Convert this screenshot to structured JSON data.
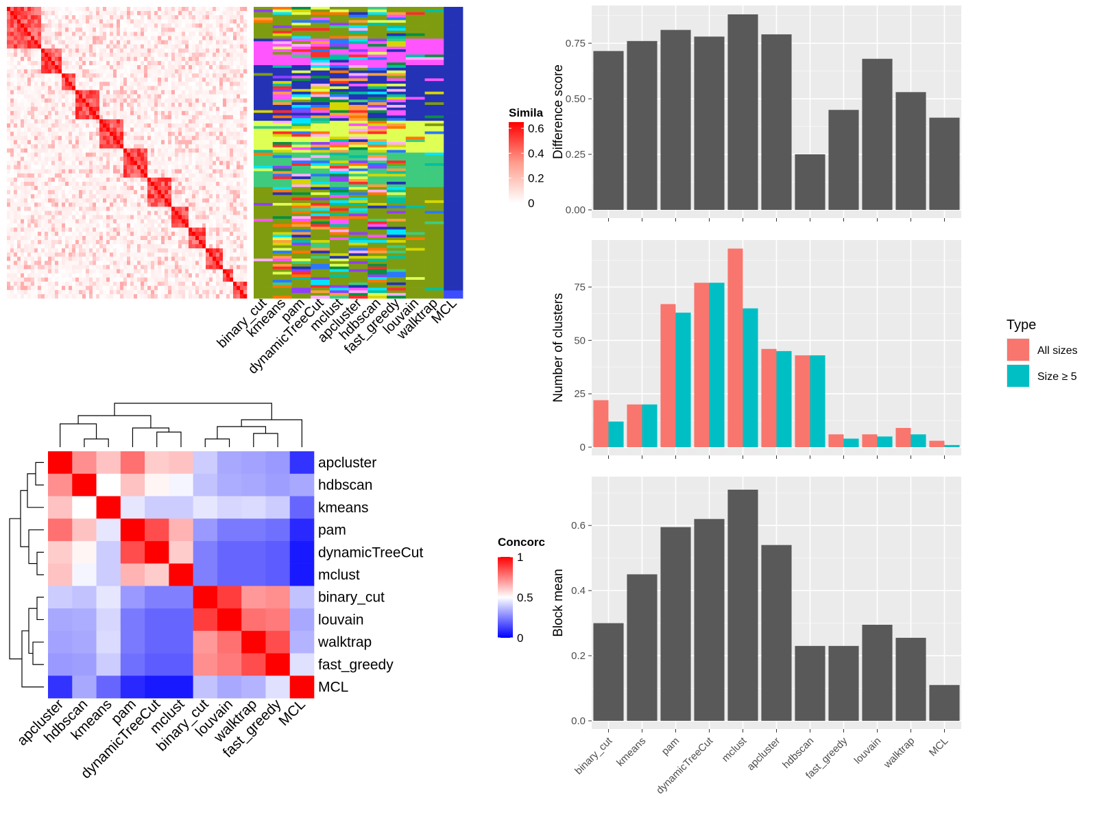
{
  "methods_order": [
    "binary_cut",
    "kmeans",
    "pam",
    "dynamicTreeCut",
    "mclust",
    "apcluster",
    "hdbscan",
    "fast_greedy",
    "louvain",
    "walktrap",
    "MCL"
  ],
  "similarity_panel": {
    "legend_title": "Simila",
    "legend_ticks": [
      "0",
      "0.2",
      "0.4",
      "0.6"
    ],
    "column_labels": [
      "binary_cut",
      "kmeans",
      "pam",
      "dynamicTreeCut",
      "mclust",
      "apcluster",
      "hdbscan",
      "fast_greedy",
      "louvain",
      "walktrap",
      "MCL"
    ]
  },
  "concordance_panel": {
    "legend_title": "Concorc",
    "legend_ticks": [
      "1",
      "0.5",
      "0"
    ],
    "colors": {
      "high": "#ff0000",
      "mid": "#ffffff",
      "low": "#0000ff"
    },
    "labels": [
      "apcluster",
      "hdbscan",
      "kmeans",
      "pam",
      "dynamicTreeCut",
      "mclust",
      "binary_cut",
      "louvain",
      "walktrap",
      "fast_greedy",
      "MCL"
    ],
    "matrix": [
      [
        1.0,
        0.72,
        0.62,
        0.78,
        0.6,
        0.62,
        0.4,
        0.33,
        0.32,
        0.3,
        0.1
      ],
      [
        0.72,
        1.0,
        0.5,
        0.62,
        0.52,
        0.48,
        0.38,
        0.34,
        0.33,
        0.31,
        0.33
      ],
      [
        0.62,
        0.5,
        1.0,
        0.45,
        0.4,
        0.4,
        0.45,
        0.42,
        0.43,
        0.4,
        0.2
      ],
      [
        0.78,
        0.62,
        0.45,
        1.0,
        0.85,
        0.65,
        0.3,
        0.24,
        0.24,
        0.22,
        0.08
      ],
      [
        0.6,
        0.52,
        0.4,
        0.85,
        1.0,
        0.6,
        0.25,
        0.2,
        0.2,
        0.18,
        0.05
      ],
      [
        0.62,
        0.48,
        0.4,
        0.65,
        0.6,
        1.0,
        0.25,
        0.2,
        0.2,
        0.18,
        0.05
      ],
      [
        0.4,
        0.38,
        0.45,
        0.3,
        0.25,
        0.25,
        1.0,
        0.88,
        0.7,
        0.72,
        0.38
      ],
      [
        0.33,
        0.34,
        0.42,
        0.24,
        0.2,
        0.2,
        0.88,
        1.0,
        0.78,
        0.76,
        0.33
      ],
      [
        0.32,
        0.33,
        0.43,
        0.24,
        0.2,
        0.2,
        0.7,
        0.78,
        1.0,
        0.85,
        0.35
      ],
      [
        0.3,
        0.31,
        0.4,
        0.22,
        0.18,
        0.18,
        0.72,
        0.76,
        0.85,
        1.0,
        0.44
      ],
      [
        0.1,
        0.33,
        0.2,
        0.08,
        0.05,
        0.05,
        0.38,
        0.33,
        0.35,
        0.44,
        1.0
      ]
    ]
  },
  "chart_data": [
    {
      "type": "bar",
      "ylabel": "Difference score",
      "categories": [
        "binary_cut",
        "kmeans",
        "pam",
        "dynamicTreeCut",
        "mclust",
        "apcluster",
        "hdbscan",
        "fast_greedy",
        "louvain",
        "walktrap",
        "MCL"
      ],
      "values": [
        0.715,
        0.76,
        0.81,
        0.78,
        0.88,
        0.79,
        0.25,
        0.45,
        0.68,
        0.53,
        0.415
      ],
      "ylim": [
        0,
        0.92
      ],
      "yticks": [
        "0.00",
        "0.25",
        "0.50",
        "0.75"
      ],
      "bar_color": "#595959",
      "panel_bg": "#ebebeb"
    },
    {
      "type": "bar",
      "ylabel": "Number of clusters",
      "categories": [
        "binary_cut",
        "kmeans",
        "pam",
        "dynamicTreeCut",
        "mclust",
        "apcluster",
        "hdbscan",
        "fast_greedy",
        "louvain",
        "walktrap",
        "MCL"
      ],
      "series": [
        {
          "name": "All sizes",
          "color": "#f8766d",
          "values": [
            22,
            20,
            67,
            77,
            93,
            46,
            43,
            6,
            6,
            9,
            3
          ]
        },
        {
          "name": "Size ≥ 5",
          "color": "#00bfc4",
          "values": [
            12,
            20,
            63,
            77,
            65,
            45,
            43,
            4,
            5,
            6,
            1
          ]
        }
      ],
      "ylim": [
        0,
        97
      ],
      "yticks": [
        "0",
        "25",
        "50",
        "75"
      ],
      "legend_title": "Type",
      "legend_position": "right"
    },
    {
      "type": "bar",
      "ylabel": "Block mean",
      "categories": [
        "binary_cut",
        "kmeans",
        "pam",
        "dynamicTreeCut",
        "mclust",
        "apcluster",
        "hdbscan",
        "fast_greedy",
        "louvain",
        "walktrap",
        "MCL"
      ],
      "values": [
        0.3,
        0.45,
        0.595,
        0.62,
        0.71,
        0.54,
        0.23,
        0.23,
        0.295,
        0.255,
        0.11
      ],
      "ylim": [
        0,
        0.75
      ],
      "yticks": [
        "0.0",
        "0.2",
        "0.4",
        "0.6"
      ],
      "bar_color": "#595959",
      "panel_bg": "#ebebeb"
    }
  ]
}
